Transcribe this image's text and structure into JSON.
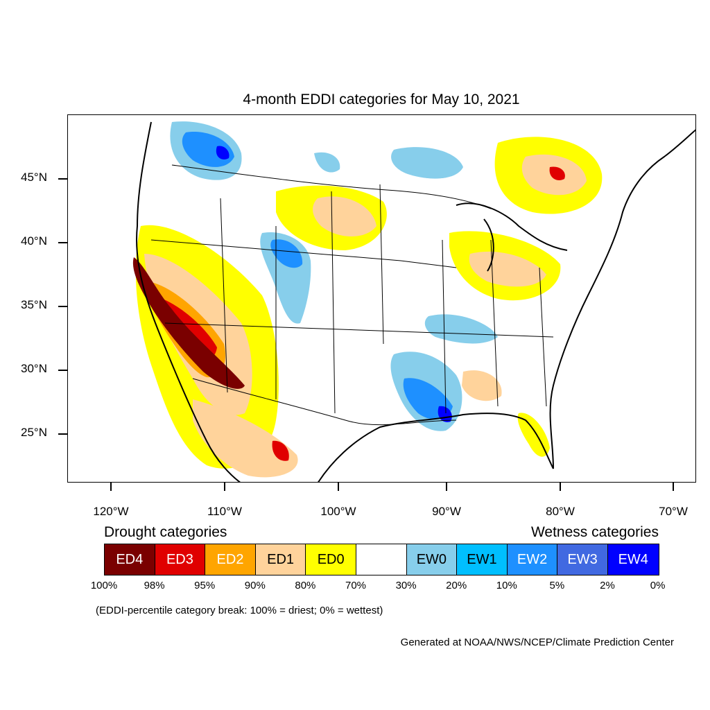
{
  "title": "4-month EDDI categories for May 10, 2021",
  "lat_labels": [
    "45°N",
    "40°N",
    "35°N",
    "30°N",
    "25°N"
  ],
  "lon_labels": [
    "120°W",
    "110°W",
    "100°W",
    "90°W",
    "80°W",
    "70°W"
  ],
  "legend": {
    "drought_heading": "Drought categories",
    "wetness_heading": "Wetness categories",
    "categories": [
      {
        "label": "ED4",
        "color": "#7a0000",
        "text_color": "#ffffff"
      },
      {
        "label": "ED3",
        "color": "#e00000",
        "text_color": "#ffffff"
      },
      {
        "label": "ED2",
        "color": "#ffa500",
        "text_color": "#ffffff"
      },
      {
        "label": "ED1",
        "color": "#ffd39b",
        "text_color": "#000000"
      },
      {
        "label": "ED0",
        "color": "#ffff00",
        "text_color": "#000000"
      },
      {
        "label": "",
        "color": "#ffffff",
        "text_color": "#000000"
      },
      {
        "label": "EW0",
        "color": "#87ceeb",
        "text_color": "#000000"
      },
      {
        "label": "EW1",
        "color": "#00bfff",
        "text_color": "#000000"
      },
      {
        "label": "EW2",
        "color": "#1e90ff",
        "text_color": "#ffffff"
      },
      {
        "label": "EW3",
        "color": "#4169e1",
        "text_color": "#ffffff"
      },
      {
        "label": "EW4",
        "color": "#0000ff",
        "text_color": "#ffffff"
      }
    ],
    "percent_breaks": [
      "100%",
      "98%",
      "95%",
      "90%",
      "80%",
      "70%",
      "30%",
      "20%",
      "10%",
      "5%",
      "2%",
      "0%"
    ]
  },
  "note": "(EDDI-percentile category break: 100% = driest; 0% = wettest)",
  "credit": "Generated at NOAA/NWS/NCEP/Climate Prediction Center"
}
